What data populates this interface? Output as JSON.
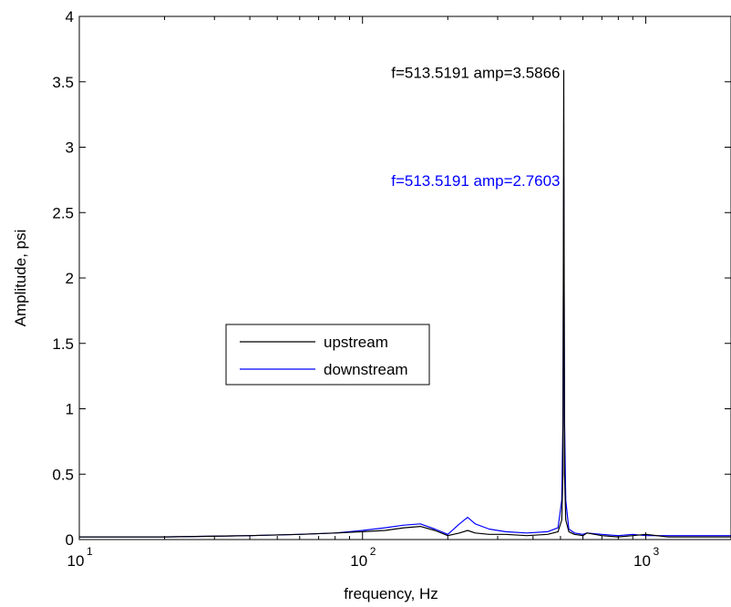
{
  "chart_data": {
    "type": "line",
    "title": "",
    "xlabel": "frequency, Hz",
    "ylabel": "Amplitude, psi",
    "xscale": "log",
    "xlim": [
      10,
      2000
    ],
    "ylim": [
      0,
      4
    ],
    "grid": false,
    "x_ticks": [
      {
        "value": 10,
        "base": "10",
        "exp": "1"
      },
      {
        "value": 100,
        "base": "10",
        "exp": "2"
      },
      {
        "value": 1000,
        "base": "10",
        "exp": "3"
      }
    ],
    "y_ticks": [
      {
        "value": 0,
        "label": "0"
      },
      {
        "value": 0.5,
        "label": "0.5"
      },
      {
        "value": 1,
        "label": "1"
      },
      {
        "value": 1.5,
        "label": "1.5"
      },
      {
        "value": 2,
        "label": "2"
      },
      {
        "value": 2.5,
        "label": "2.5"
      },
      {
        "value": 3,
        "label": "3"
      },
      {
        "value": 3.5,
        "label": "3.5"
      },
      {
        "value": 4,
        "label": "4"
      }
    ],
    "legend": {
      "placement": "center-left",
      "entries": [
        {
          "label": "upstream",
          "color": "#000000"
        },
        {
          "label": "downstream",
          "color": "#0000ff"
        }
      ]
    },
    "series": [
      {
        "name": "upstream",
        "color": "#000000",
        "x": [
          10,
          20,
          40,
          60,
          80,
          100,
          120,
          140,
          160,
          180,
          200,
          220,
          235,
          250,
          280,
          320,
          380,
          450,
          490,
          505,
          510,
          513.5191,
          517,
          522,
          535,
          560,
          600,
          620,
          700,
          800,
          900,
          1000,
          1200,
          1500,
          2000
        ],
        "y": [
          0.02,
          0.02,
          0.03,
          0.04,
          0.05,
          0.06,
          0.07,
          0.09,
          0.1,
          0.07,
          0.03,
          0.05,
          0.07,
          0.05,
          0.04,
          0.04,
          0.03,
          0.04,
          0.06,
          0.15,
          0.5,
          3.5866,
          0.5,
          0.15,
          0.06,
          0.04,
          0.03,
          0.05,
          0.03,
          0.02,
          0.03,
          0.04,
          0.02,
          0.02,
          0.02
        ]
      },
      {
        "name": "downstream",
        "color": "#0000ff",
        "x": [
          10,
          20,
          40,
          60,
          80,
          100,
          120,
          140,
          160,
          180,
          200,
          220,
          235,
          250,
          280,
          320,
          380,
          450,
          490,
          505,
          510,
          513.5191,
          517,
          522,
          535,
          560,
          600,
          620,
          700,
          800,
          900,
          1000,
          1200,
          1500,
          2000
        ],
        "y": [
          0.02,
          0.02,
          0.03,
          0.04,
          0.05,
          0.07,
          0.09,
          0.11,
          0.12,
          0.08,
          0.04,
          0.12,
          0.17,
          0.12,
          0.08,
          0.06,
          0.05,
          0.06,
          0.09,
          0.3,
          0.9,
          2.7603,
          0.9,
          0.3,
          0.08,
          0.05,
          0.04,
          0.05,
          0.04,
          0.03,
          0.04,
          0.03,
          0.03,
          0.03,
          0.03
        ]
      }
    ],
    "annotations": [
      {
        "text": "f=513.5191 amp=3.5866",
        "x": 513.5191,
        "y": 3.5866,
        "color": "#000000"
      },
      {
        "text": "f=513.5191 amp=2.7603",
        "x": 513.5191,
        "y": 2.7603,
        "color": "#0000ff"
      }
    ]
  }
}
